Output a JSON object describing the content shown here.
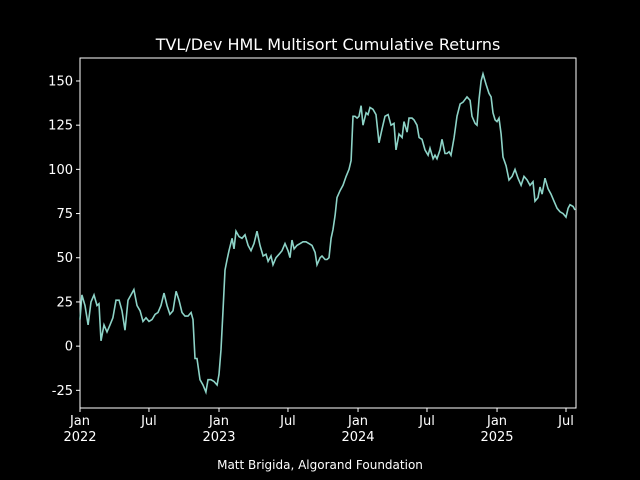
{
  "chart_data": {
    "type": "line",
    "title": "TVL/Dev HML Multisort Cumulative Returns",
    "caption": "Matt Brigida, Algorand Foundation",
    "xlim": [
      2022.0,
      2025.568
    ],
    "ylim": [
      -35,
      163
    ],
    "yticks": [
      -25,
      0,
      25,
      50,
      75,
      100,
      125,
      150
    ],
    "xticks": [
      {
        "value": 2022.0,
        "label": "Jan\n2022"
      },
      {
        "value": 2022.496,
        "label": "Jul"
      },
      {
        "value": 2023.0,
        "label": "Jan\n2023"
      },
      {
        "value": 2023.496,
        "label": "Jul"
      },
      {
        "value": 2024.0,
        "label": "Jan\n2024"
      },
      {
        "value": 2024.496,
        "label": "Jul"
      },
      {
        "value": 2025.0,
        "label": "Jan\n2025"
      },
      {
        "value": 2025.496,
        "label": "Jul"
      }
    ],
    "series": [
      {
        "color": "#8dd3c7",
        "x": [
          2022.0,
          2022.014,
          2022.036,
          2022.058,
          2022.079,
          2022.101,
          2022.122,
          2022.137,
          2022.151,
          2022.173,
          2022.194,
          2022.216,
          2022.237,
          2022.259,
          2022.281,
          2022.302,
          2022.324,
          2022.345,
          2022.367,
          2022.388,
          2022.41,
          2022.432,
          2022.453,
          2022.475,
          2022.496,
          2022.518,
          2022.54,
          2022.561,
          2022.583,
          2022.604,
          2022.626,
          2022.647,
          2022.669,
          2022.691,
          2022.712,
          2022.734,
          2022.755,
          2022.777,
          2022.799,
          2022.813,
          2022.827,
          2022.842,
          2022.863,
          2022.885,
          2022.906,
          2022.921,
          2022.942,
          2022.964,
          2022.986,
          2023.0,
          2023.014,
          2023.029,
          2023.043,
          2023.058,
          2023.072,
          2023.094,
          2023.108,
          2023.122,
          2023.144,
          2023.165,
          2023.187,
          2023.209,
          2023.23,
          2023.252,
          2023.273,
          2023.295,
          2023.317,
          2023.338,
          2023.353,
          2023.374,
          2023.388,
          2023.41,
          2023.432,
          2023.453,
          2023.475,
          2023.496,
          2023.511,
          2023.525,
          2023.54,
          2023.561,
          2023.583,
          2023.604,
          2023.626,
          2023.647,
          2023.669,
          2023.691,
          2023.705,
          2023.727,
          2023.741,
          2023.763,
          2023.777,
          2023.791,
          2023.806,
          2023.82,
          2023.835,
          2023.849,
          2023.871,
          2023.892,
          2023.914,
          2023.935,
          2023.95,
          2023.964,
          2023.978,
          2023.993,
          2024.007,
          2024.022,
          2024.036,
          2024.058,
          2024.072,
          2024.086,
          2024.108,
          2024.129,
          2024.151,
          2024.173,
          2024.194,
          2024.216,
          2024.237,
          2024.259,
          2024.273,
          2024.295,
          2024.317,
          2024.331,
          2024.353,
          2024.367,
          2024.388,
          2024.403,
          2024.424,
          2024.439,
          2024.46,
          2024.482,
          2024.504,
          2024.518,
          2024.54,
          2024.554,
          2024.568,
          2024.59,
          2024.604,
          2024.626,
          2024.64,
          2024.655,
          2024.669,
          2024.691,
          2024.712,
          2024.734,
          2024.755,
          2024.784,
          2024.806,
          2024.82,
          2024.842,
          2024.856,
          2024.871,
          2024.885,
          2024.899,
          2024.921,
          2024.942,
          2024.957,
          2024.971,
          2024.986,
          2025.0,
          2025.014,
          2025.029,
          2025.043,
          2025.065,
          2025.086,
          2025.108,
          2025.129,
          2025.151,
          2025.173,
          2025.194,
          2025.216,
          2025.237,
          2025.259,
          2025.273,
          2025.295,
          2025.309,
          2025.324,
          2025.345,
          2025.367,
          2025.388,
          2025.41,
          2025.432,
          2025.453,
          2025.475,
          2025.496,
          2025.511,
          2025.525,
          2025.547,
          2025.561
        ],
        "values": [
          15,
          29,
          23,
          12,
          25,
          29,
          23,
          24,
          3,
          12,
          8,
          12,
          16,
          26,
          26,
          20,
          9,
          26,
          29,
          32,
          23,
          20,
          14,
          16,
          14,
          15,
          18,
          19,
          23,
          30,
          23,
          18,
          20,
          31,
          26,
          19,
          17,
          17,
          19,
          15,
          -7,
          -7,
          -19,
          -22,
          -26,
          -19,
          -19,
          -20,
          -22,
          -16,
          -2,
          20,
          43,
          49,
          54,
          61,
          55,
          65,
          62,
          61,
          63,
          57,
          54,
          58,
          65,
          57,
          51,
          52,
          48,
          51,
          46,
          50,
          52,
          54,
          58,
          54,
          50,
          60,
          55,
          57,
          58,
          59,
          59,
          58,
          57,
          53,
          46,
          50,
          51,
          49,
          49,
          50,
          61,
          66,
          74,
          84,
          88,
          91,
          96,
          100,
          105,
          130,
          130,
          129,
          130,
          136,
          125,
          132,
          131,
          135,
          134,
          131,
          115,
          123,
          130,
          131,
          125,
          126,
          111,
          120,
          118,
          127,
          121,
          129,
          129,
          128,
          125,
          118,
          117,
          111,
          108,
          112,
          106,
          108,
          106,
          111,
          117,
          109,
          109,
          110,
          108,
          118,
          130,
          137,
          138,
          141,
          139,
          130,
          126,
          125,
          140,
          150,
          154,
          148,
          143,
          141,
          132,
          128,
          127,
          129,
          120,
          107,
          102,
          94,
          96,
          100,
          95,
          91,
          96,
          94,
          91,
          93,
          82,
          84,
          90,
          86,
          95,
          89,
          86,
          82,
          78,
          76,
          75,
          73,
          78,
          80,
          79,
          77
        ]
      }
    ]
  }
}
